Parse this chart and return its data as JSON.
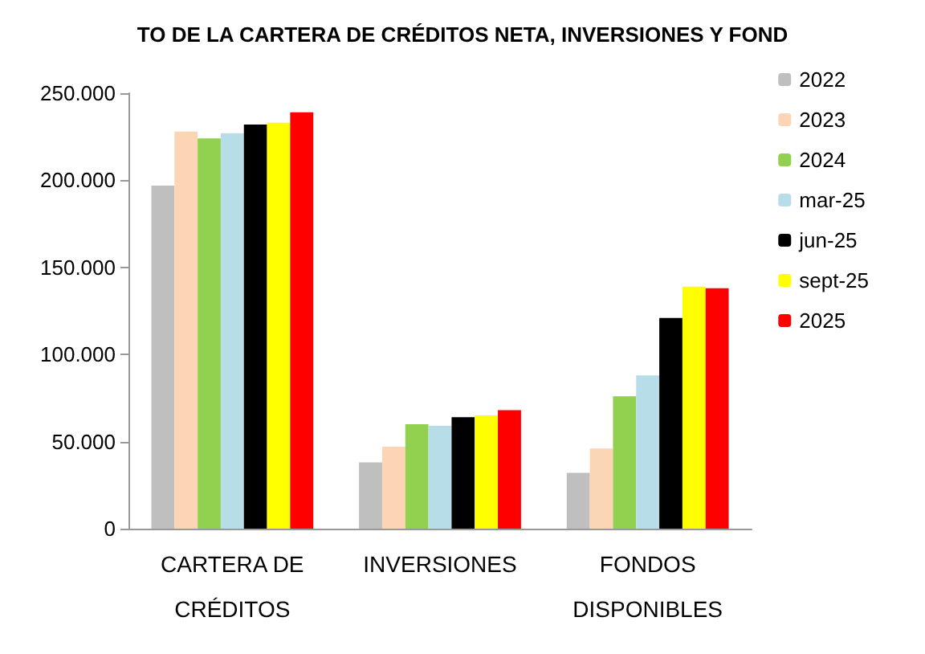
{
  "chart_data": {
    "type": "bar",
    "title": "TO DE LA CARTERA DE CRÉDITOS NETA, INVERSIONES Y FOND",
    "categories": [
      "CARTERA DE\nCRÉDITOS",
      "INVERSIONES",
      "FONDOS\nDISPONIBLES"
    ],
    "series": [
      {
        "name": "2022",
        "color": "#bfbfbf",
        "values": [
          197000,
          38000,
          32000
        ]
      },
      {
        "name": "2023",
        "color": "#fcd5b5",
        "values": [
          228000,
          47000,
          46000
        ]
      },
      {
        "name": "2024",
        "color": "#92d050",
        "values": [
          224000,
          60000,
          76000
        ]
      },
      {
        "name": "mar-25",
        "color": "#b7dee8",
        "values": [
          227000,
          59000,
          88000
        ]
      },
      {
        "name": "jun-25",
        "color": "#000000",
        "values": [
          232000,
          64000,
          121000
        ]
      },
      {
        "name": "sept-25",
        "color": "#ffff00",
        "values": [
          233000,
          65000,
          139000
        ]
      },
      {
        "name": "2025",
        "color": "#ff0000",
        "values": [
          239000,
          68000,
          138000
        ]
      }
    ],
    "ylim": [
      0,
      250000
    ],
    "yticks": [
      {
        "value": 0,
        "label": "0"
      },
      {
        "value": 50000,
        "label": "50.000"
      },
      {
        "value": 100000,
        "label": "100.000"
      },
      {
        "value": 150000,
        "label": "150.000"
      },
      {
        "value": 200000,
        "label": "200.000"
      },
      {
        "value": 250000,
        "label": "250.000"
      }
    ],
    "grid": false,
    "legend": "right"
  }
}
